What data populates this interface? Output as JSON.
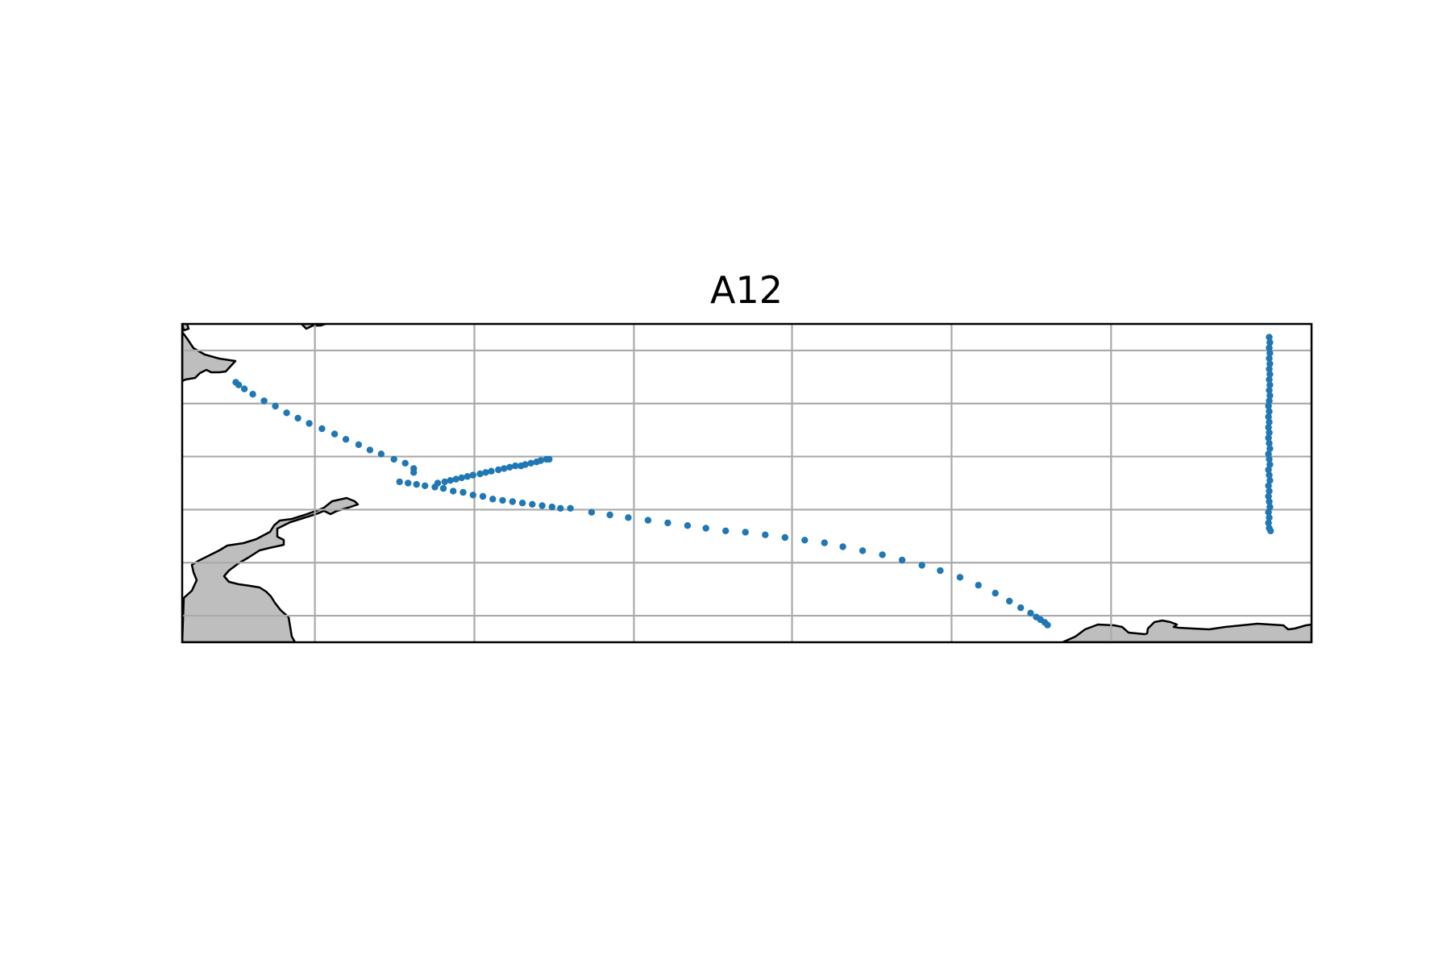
{
  "chart_data": {
    "type": "scatter",
    "title": "A12",
    "xlabel": "",
    "ylabel": "",
    "grid": true,
    "legend": "none",
    "colors": {
      "points": "#1f77b4",
      "land": "#bebebe",
      "coastline": "#000000",
      "grid": "#aaaaaa",
      "frame": "#000000"
    },
    "xlim": [
      -60,
      20
    ],
    "ylim": [
      -72,
      -48
    ],
    "x_gridlines": [
      -50.6,
      -39.3,
      -28.0,
      -16.8,
      -5.5,
      5.8
    ],
    "y_gridlines": [
      -70,
      -66,
      -62,
      -58,
      -54,
      -50
    ],
    "series": [
      {
        "x": [
          -56.2,
          -56.0,
          -55.6,
          -55.0,
          -54.2,
          -53.4,
          -52.6,
          -51.8,
          -51.0,
          -50.1,
          -49.2,
          -48.4,
          -47.5,
          -46.7,
          -45.9,
          -45.0,
          -44.2,
          -43.6,
          -43.6
        ],
        "y": [
          -52.4,
          -52.6,
          -52.9,
          -53.3,
          -53.8,
          -54.2,
          -54.7,
          -55.1,
          -55.5,
          -55.9,
          -56.3,
          -56.7,
          -57.1,
          -57.5,
          -57.8,
          -58.2,
          -58.5,
          -58.9,
          -59.2
        ]
      },
      {
        "x": [
          -41.9,
          -41.4,
          -41.0,
          -40.6,
          -40.2,
          -39.8,
          -39.4,
          -38.9,
          -38.5,
          -38.1,
          -37.6,
          -37.2,
          -36.8,
          -36.4,
          -36.0,
          -35.7,
          -35.3,
          -34.9,
          -34.6,
          -34.2,
          -34.0
        ],
        "y": [
          -60.0,
          -59.9,
          -59.8,
          -59.7,
          -59.6,
          -59.5,
          -59.4,
          -59.3,
          -59.2,
          -59.1,
          -59.0,
          -58.9,
          -58.8,
          -58.7,
          -58.7,
          -58.6,
          -58.5,
          -58.4,
          -58.3,
          -58.2,
          -58.2
        ]
      },
      {
        "x": [
          -44.6,
          -44.0,
          -43.4,
          -42.8,
          -42.1,
          -41.5,
          -40.8,
          -40.1,
          -39.4,
          -38.7,
          -38.0,
          -37.3,
          -36.6,
          -35.9,
          -35.2,
          -34.5,
          -33.8,
          -33.2,
          -32.5,
          -31.0,
          -29.7,
          -28.4,
          -27.0,
          -25.6,
          -24.2,
          -22.9,
          -21.5,
          -20.1,
          -18.7,
          -17.3,
          -15.9,
          -14.5,
          -13.2,
          -11.8,
          -10.4,
          -9.0,
          -7.6,
          -6.3,
          -4.9,
          -3.6,
          -2.4,
          -1.4,
          -0.6,
          0.1,
          0.5,
          0.8,
          1.1,
          1.3
        ],
        "y": [
          -59.9,
          -60.0,
          -60.1,
          -60.2,
          -60.3,
          -60.4,
          -60.6,
          -60.7,
          -60.9,
          -61.0,
          -61.2,
          -61.3,
          -61.4,
          -61.5,
          -61.6,
          -61.7,
          -61.8,
          -61.9,
          -61.9,
          -62.2,
          -62.4,
          -62.6,
          -62.8,
          -63.0,
          -63.2,
          -63.4,
          -63.6,
          -63.7,
          -63.9,
          -64.1,
          -64.3,
          -64.5,
          -64.8,
          -65.1,
          -65.4,
          -65.8,
          -66.2,
          -66.6,
          -67.1,
          -67.7,
          -68.3,
          -68.9,
          -69.4,
          -69.8,
          -70.1,
          -70.3,
          -70.5,
          -70.7
        ]
      },
      {
        "x": [
          17.0,
          17.05,
          17.0,
          17.05,
          17.0,
          17.05,
          17.0,
          17.05,
          17.0,
          17.05,
          17.0,
          17.05,
          17.0,
          16.95,
          17.0,
          16.95,
          17.0,
          16.95,
          17.0,
          16.95,
          17.0,
          17.05,
          16.95,
          17.0,
          17.05,
          16.95,
          17.0,
          17.05,
          16.95,
          17.0,
          16.95,
          17.0,
          17.05,
          16.95,
          17.0,
          16.95,
          17.0,
          17.1
        ],
        "y": [
          -49.0,
          -49.4,
          -49.8,
          -50.2,
          -50.6,
          -51.0,
          -51.4,
          -51.8,
          -52.2,
          -52.6,
          -53.0,
          -53.4,
          -53.8,
          -54.2,
          -54.6,
          -55.0,
          -55.4,
          -55.8,
          -56.2,
          -56.6,
          -57.0,
          -57.4,
          -57.8,
          -58.2,
          -58.6,
          -59.0,
          -59.4,
          -59.8,
          -60.2,
          -60.6,
          -61.0,
          -61.4,
          -61.8,
          -62.2,
          -62.6,
          -63.0,
          -63.4,
          -63.6
        ]
      }
    ]
  }
}
